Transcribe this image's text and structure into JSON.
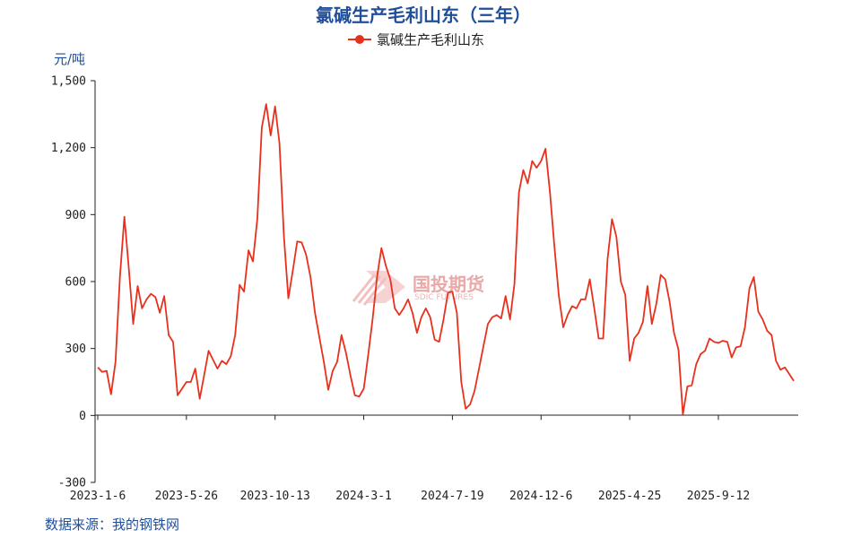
{
  "chart_data": {
    "type": "line",
    "title": "氯碱生产毛利山东（三年）",
    "unit_label": "元/吨",
    "ylim": [
      -300,
      1500
    ],
    "y_ticks": [
      -300,
      0,
      300,
      600,
      900,
      1200,
      1500
    ],
    "y_tick_labels": [
      "-300",
      "0",
      "300",
      "600",
      "900",
      "1,200",
      "1,500"
    ],
    "x_tick_labels": [
      "2023-1-6",
      "2023-5-26",
      "2023-10-13",
      "2024-3-1",
      "2024-7-19",
      "2024-12-6",
      "2025-4-25",
      "2025-9-12"
    ],
    "grid": false,
    "legend_position": "top-center",
    "series": [
      {
        "name": "氯碱生产毛利山东",
        "color": "#e8301c",
        "values": [
          215,
          195,
          200,
          95,
          240,
          620,
          890,
          660,
          410,
          580,
          480,
          520,
          545,
          530,
          460,
          535,
          360,
          330,
          90,
          120,
          150,
          150,
          210,
          75,
          180,
          290,
          250,
          210,
          245,
          230,
          265,
          360,
          585,
          555,
          740,
          690,
          880,
          1290,
          1395,
          1255,
          1385,
          1220,
          800,
          525,
          650,
          780,
          775,
          720,
          620,
          460,
          350,
          240,
          115,
          200,
          240,
          360,
          280,
          180,
          90,
          85,
          120,
          270,
          430,
          620,
          750,
          670,
          610,
          480,
          450,
          480,
          520,
          460,
          370,
          440,
          480,
          440,
          340,
          330,
          430,
          550,
          555,
          460,
          150,
          30,
          50,
          110,
          210,
          310,
          410,
          440,
          450,
          435,
          535,
          430,
          590,
          1000,
          1100,
          1040,
          1140,
          1110,
          1140,
          1195,
          1000,
          760,
          540,
          395,
          450,
          490,
          480,
          520,
          520,
          610,
          480,
          345,
          345,
          700,
          880,
          800,
          600,
          540,
          245,
          345,
          370,
          420,
          580,
          410,
          500,
          630,
          610,
          510,
          370,
          295,
          5,
          130,
          135,
          230,
          275,
          290,
          345,
          330,
          325,
          335,
          330,
          260,
          305,
          310,
          395,
          570,
          620,
          465,
          430,
          380,
          360,
          245,
          205,
          215,
          185,
          155
        ]
      }
    ]
  },
  "watermark": {
    "text": "国投期货",
    "subtext": "SDIC FUTURES"
  },
  "source_text": "数据来源：我的钢铁网"
}
